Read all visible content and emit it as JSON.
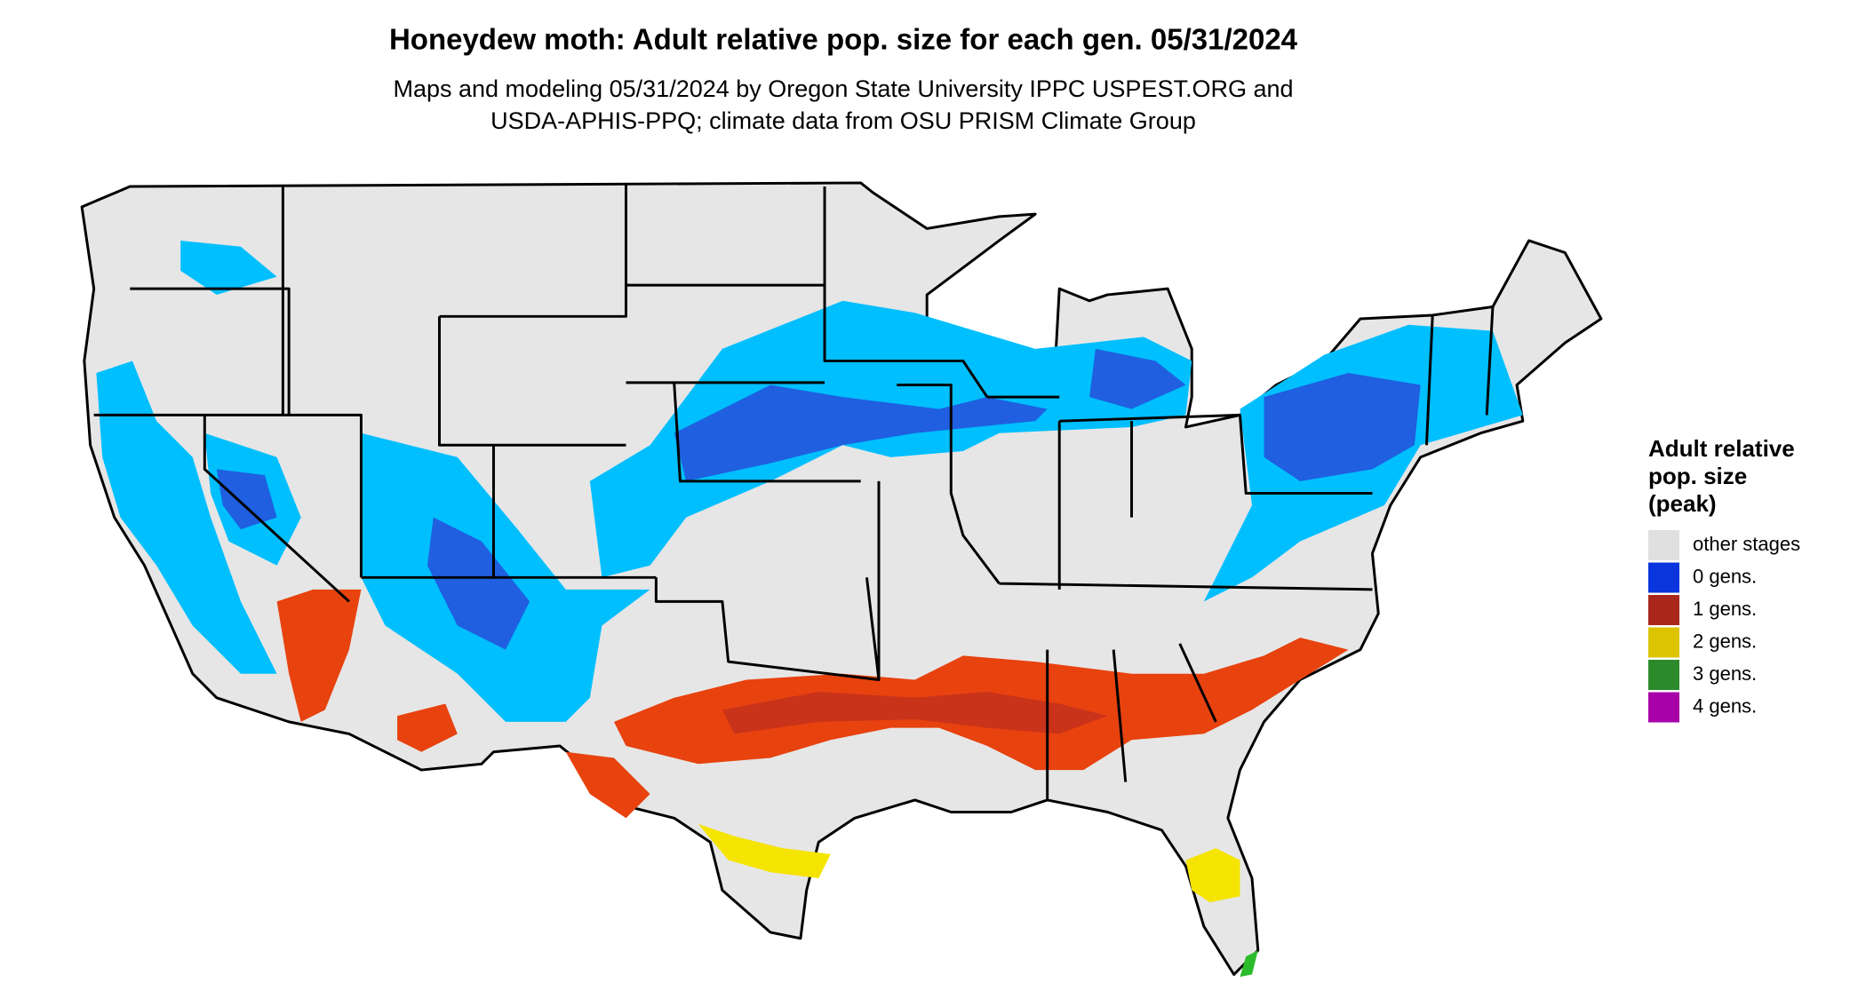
{
  "header": {
    "title": "Honeydew moth: Adult relative pop. size for each gen. 05/31/2024",
    "subtitle_lines": [
      "Maps and modeling 05/31/2024 by Oregon State University IPPC USPEST.ORG and",
      "USDA-APHIS-PPQ; climate data from OSU PRISM Climate Group"
    ]
  },
  "legend": {
    "title_lines": [
      "Adult relative",
      "pop. size",
      "(peak)"
    ],
    "items": [
      {
        "label": "other stages",
        "color": "#e0e0e0"
      },
      {
        "label": "0 gens.",
        "color": "#0a35dc"
      },
      {
        "label": "1 gens.",
        "color": "#a9261b"
      },
      {
        "label": "2 gens.",
        "color": "#dcc400"
      },
      {
        "label": "3 gens.",
        "color": "#2b8b2b"
      },
      {
        "label": "4 gens.",
        "color": "#a800a8"
      }
    ]
  }
}
